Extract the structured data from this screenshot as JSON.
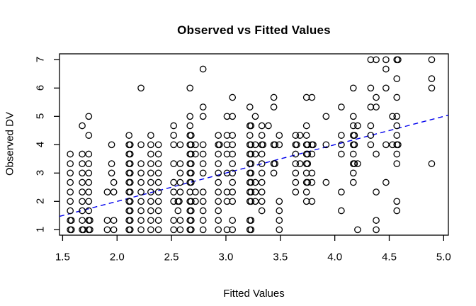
{
  "figure": {
    "title": "Observed vs Fitted Values"
  },
  "chart_data": {
    "type": "scatter",
    "title": "Observed vs Fitted Values",
    "xlabel": "Fitted Values",
    "ylabel": "Observed DV",
    "x_ticks": [
      "1.5",
      "2.0",
      "2.5",
      "3.0",
      "3.5",
      "4.0",
      "4.5",
      "5.0"
    ],
    "x_tick_values": [
      1.5,
      2.0,
      2.5,
      3.0,
      3.5,
      4.0,
      4.5,
      5.0
    ],
    "y_ticks": [
      "1",
      "2",
      "3",
      "4",
      "5",
      "6",
      "7"
    ],
    "y_tick_values": [
      1,
      2,
      3,
      4,
      5,
      6,
      7
    ],
    "xlim": [
      1.47,
      5.04
    ],
    "ylim": [
      0.79,
      7.22
    ],
    "grid": false,
    "legend": "none",
    "marker": "open-circle",
    "marker_color": "#000000",
    "background": "#ffffff",
    "reference_line": {
      "slope": 1,
      "intercept": 0,
      "style": "dashed",
      "color": "#0000EE"
    },
    "points": [
      [
        1.57,
        1,
        2
      ],
      [
        1.57,
        1.33,
        2
      ],
      [
        1.57,
        1.67
      ],
      [
        1.57,
        2
      ],
      [
        1.57,
        2.33
      ],
      [
        1.57,
        2.67
      ],
      [
        1.57,
        3
      ],
      [
        1.57,
        3.33
      ],
      [
        1.57,
        3.67
      ],
      [
        1.68,
        1,
        2
      ],
      [
        1.68,
        1.33
      ],
      [
        1.68,
        1.67
      ],
      [
        1.68,
        2
      ],
      [
        1.68,
        2.33
      ],
      [
        1.68,
        2.67
      ],
      [
        1.68,
        3
      ],
      [
        1.68,
        3.33
      ],
      [
        1.68,
        3.67
      ],
      [
        1.68,
        4.67
      ],
      [
        1.74,
        1,
        2
      ],
      [
        1.74,
        1.33,
        2
      ],
      [
        1.74,
        1.67
      ],
      [
        1.74,
        2
      ],
      [
        1.74,
        2.33
      ],
      [
        1.74,
        2.67
      ],
      [
        1.74,
        3
      ],
      [
        1.74,
        3.33
      ],
      [
        1.74,
        3.67
      ],
      [
        1.74,
        4.33
      ],
      [
        1.74,
        5
      ],
      [
        1.91,
        1
      ],
      [
        1.91,
        1.33
      ],
      [
        1.91,
        2.33
      ],
      [
        1.97,
        1
      ],
      [
        1.97,
        1.33
      ],
      [
        1.97,
        2.33
      ],
      [
        1.97,
        2.67
      ],
      [
        1.95,
        3
      ],
      [
        1.95,
        3.33
      ],
      [
        1.95,
        4
      ],
      [
        2.11,
        1,
        2
      ],
      [
        2.11,
        1.33,
        2
      ],
      [
        2.11,
        1.67,
        2
      ],
      [
        2.11,
        2,
        2
      ],
      [
        2.11,
        2.33,
        2
      ],
      [
        2.11,
        2.67,
        2
      ],
      [
        2.11,
        3,
        2
      ],
      [
        2.11,
        3.33,
        2
      ],
      [
        2.11,
        3.67,
        2
      ],
      [
        2.11,
        4,
        2
      ],
      [
        2.11,
        4.33
      ],
      [
        2.22,
        1
      ],
      [
        2.22,
        1.33
      ],
      [
        2.22,
        1.67
      ],
      [
        2.22,
        2
      ],
      [
        2.22,
        2.33
      ],
      [
        2.22,
        2.67
      ],
      [
        2.22,
        3
      ],
      [
        2.22,
        3.33
      ],
      [
        2.22,
        4
      ],
      [
        2.22,
        6
      ],
      [
        2.31,
        1
      ],
      [
        2.31,
        1.33
      ],
      [
        2.31,
        1.67
      ],
      [
        2.31,
        2
      ],
      [
        2.31,
        2.33
      ],
      [
        2.31,
        2.67
      ],
      [
        2.31,
        3
      ],
      [
        2.31,
        3.33
      ],
      [
        2.31,
        3.67
      ],
      [
        2.31,
        4
      ],
      [
        2.31,
        4.33
      ],
      [
        2.38,
        1
      ],
      [
        2.38,
        1.33
      ],
      [
        2.38,
        1.67
      ],
      [
        2.38,
        2
      ],
      [
        2.38,
        2.33
      ],
      [
        2.38,
        2.67
      ],
      [
        2.38,
        3
      ],
      [
        2.38,
        3.33
      ],
      [
        2.38,
        3.67
      ],
      [
        2.38,
        4
      ],
      [
        2.52,
        1
      ],
      [
        2.52,
        1.33
      ],
      [
        2.52,
        2
      ],
      [
        2.52,
        2.33
      ],
      [
        2.52,
        2.67
      ],
      [
        2.52,
        3.33
      ],
      [
        2.52,
        4
      ],
      [
        2.52,
        4.33
      ],
      [
        2.52,
        4.67
      ],
      [
        2.58,
        1
      ],
      [
        2.58,
        1.33
      ],
      [
        2.58,
        2.33
      ],
      [
        2.58,
        2.67
      ],
      [
        2.58,
        3
      ],
      [
        2.58,
        3.33
      ],
      [
        2.58,
        4
      ],
      [
        2.56,
        1.67
      ],
      [
        2.56,
        2,
        2
      ],
      [
        2.67,
        1,
        2
      ],
      [
        2.67,
        1.33,
        2
      ],
      [
        2.67,
        1.67,
        2
      ],
      [
        2.67,
        2,
        2
      ],
      [
        2.67,
        2.33
      ],
      [
        2.67,
        2.67,
        2
      ],
      [
        2.67,
        3,
        2
      ],
      [
        2.67,
        3.33,
        2
      ],
      [
        2.67,
        3.67,
        2
      ],
      [
        2.67,
        4,
        2
      ],
      [
        2.67,
        4.33,
        2
      ],
      [
        2.67,
        4.67
      ],
      [
        2.67,
        5
      ],
      [
        2.67,
        6
      ],
      [
        2.72,
        2
      ],
      [
        2.72,
        2.33
      ],
      [
        2.72,
        3.67
      ],
      [
        2.72,
        4
      ],
      [
        2.79,
        1
      ],
      [
        2.79,
        1.33
      ],
      [
        2.79,
        1.67
      ],
      [
        2.79,
        2
      ],
      [
        2.79,
        2.33
      ],
      [
        2.79,
        3
      ],
      [
        2.79,
        3.33
      ],
      [
        2.79,
        3.67
      ],
      [
        2.79,
        4
      ],
      [
        2.79,
        5
      ],
      [
        2.79,
        5.33
      ],
      [
        2.79,
        6.67
      ],
      [
        2.93,
        1
      ],
      [
        2.93,
        1.33
      ],
      [
        2.93,
        1.67
      ],
      [
        2.93,
        2
      ],
      [
        2.93,
        2.33
      ],
      [
        2.93,
        2.67
      ],
      [
        2.93,
        3
      ],
      [
        2.93,
        3.33
      ],
      [
        2.93,
        3.67
      ],
      [
        2.93,
        4,
        2
      ],
      [
        2.93,
        4.33
      ],
      [
        3.01,
        1
      ],
      [
        3.01,
        2
      ],
      [
        3.01,
        2.33
      ],
      [
        3.01,
        3
      ],
      [
        3.01,
        3.67
      ],
      [
        3.01,
        4
      ],
      [
        3.01,
        4.33
      ],
      [
        3.01,
        5
      ],
      [
        3.06,
        1
      ],
      [
        3.06,
        1.33
      ],
      [
        3.06,
        2
      ],
      [
        3.06,
        2.33
      ],
      [
        3.06,
        2.67
      ],
      [
        3.06,
        3
      ],
      [
        3.06,
        3.33
      ],
      [
        3.06,
        3.67
      ],
      [
        3.06,
        4
      ],
      [
        3.06,
        4.33
      ],
      [
        3.06,
        5
      ],
      [
        3.06,
        5.67
      ],
      [
        3.22,
        1,
        2
      ],
      [
        3.22,
        1.33,
        2
      ],
      [
        3.22,
        2,
        2
      ],
      [
        3.22,
        2.33,
        2
      ],
      [
        3.22,
        2.67,
        2
      ],
      [
        3.22,
        3,
        2
      ],
      [
        3.22,
        3.33,
        2
      ],
      [
        3.22,
        3.67,
        2
      ],
      [
        3.22,
        4,
        2
      ],
      [
        3.22,
        4.33
      ],
      [
        3.22,
        4.67,
        2
      ],
      [
        3.22,
        5.33
      ],
      [
        3.27,
        2
      ],
      [
        3.27,
        2.33
      ],
      [
        3.27,
        2.67
      ],
      [
        3.27,
        3.67
      ],
      [
        3.27,
        4
      ],
      [
        3.27,
        5
      ],
      [
        3.33,
        1.67
      ],
      [
        3.33,
        2
      ],
      [
        3.33,
        2.33
      ],
      [
        3.33,
        2.67
      ],
      [
        3.33,
        3
      ],
      [
        3.33,
        3.33
      ],
      [
        3.33,
        3.67
      ],
      [
        3.33,
        4,
        2
      ],
      [
        3.33,
        4.33
      ],
      [
        3.33,
        4.67
      ],
      [
        3.39,
        4.67
      ],
      [
        3.44,
        3
      ],
      [
        3.44,
        3.33,
        2
      ],
      [
        3.44,
        4,
        2
      ],
      [
        3.44,
        5.33
      ],
      [
        3.44,
        5.67
      ],
      [
        3.49,
        1
      ],
      [
        3.49,
        1.33
      ],
      [
        3.49,
        1.67
      ],
      [
        3.49,
        2
      ],
      [
        3.49,
        4
      ],
      [
        3.49,
        4.33
      ],
      [
        3.64,
        2.33
      ],
      [
        3.64,
        2.67
      ],
      [
        3.64,
        3
      ],
      [
        3.64,
        3.33
      ],
      [
        3.64,
        3.67
      ],
      [
        3.64,
        4,
        2
      ],
      [
        3.64,
        4.33
      ],
      [
        3.68,
        3.33
      ],
      [
        3.68,
        4.33
      ],
      [
        3.74,
        2
      ],
      [
        3.74,
        2.33
      ],
      [
        3.74,
        2.67,
        2
      ],
      [
        3.74,
        3
      ],
      [
        3.74,
        3.33,
        2
      ],
      [
        3.74,
        3.67,
        2
      ],
      [
        3.74,
        4,
        2
      ],
      [
        3.74,
        4.33
      ],
      [
        3.74,
        4.67
      ],
      [
        3.74,
        5.67
      ],
      [
        3.79,
        2
      ],
      [
        3.79,
        2.67
      ],
      [
        3.79,
        3
      ],
      [
        3.79,
        3.67
      ],
      [
        3.79,
        4,
        2
      ],
      [
        3.79,
        5.67
      ],
      [
        3.92,
        2.67
      ],
      [
        3.92,
        4
      ],
      [
        3.92,
        5
      ],
      [
        4.06,
        1.67
      ],
      [
        4.06,
        2.33
      ],
      [
        4.06,
        3.67
      ],
      [
        4.06,
        4
      ],
      [
        4.06,
        4.33
      ],
      [
        4.06,
        5.33
      ],
      [
        4.17,
        2.67
      ],
      [
        4.17,
        3
      ],
      [
        4.17,
        3.33,
        2
      ],
      [
        4.17,
        3.67
      ],
      [
        4.17,
        4,
        2
      ],
      [
        4.17,
        4.33,
        2
      ],
      [
        4.17,
        4.67
      ],
      [
        4.17,
        5
      ],
      [
        4.17,
        6
      ],
      [
        4.21,
        1
      ],
      [
        4.21,
        3.33
      ],
      [
        4.21,
        4.67
      ],
      [
        4.33,
        4
      ],
      [
        4.33,
        4.33
      ],
      [
        4.33,
        4.67
      ],
      [
        4.33,
        5.33
      ],
      [
        4.33,
        6
      ],
      [
        4.33,
        7
      ],
      [
        4.38,
        1
      ],
      [
        4.38,
        1.33
      ],
      [
        4.38,
        2.33
      ],
      [
        4.38,
        3.67
      ],
      [
        4.38,
        5.33
      ],
      [
        4.38,
        5.67
      ],
      [
        4.38,
        7
      ],
      [
        4.47,
        2.67
      ],
      [
        4.47,
        4
      ],
      [
        4.47,
        6
      ],
      [
        4.47,
        6.67
      ],
      [
        4.47,
        7
      ],
      [
        4.53,
        4
      ],
      [
        4.53,
        5
      ],
      [
        4.57,
        1.67
      ],
      [
        4.57,
        2
      ],
      [
        4.57,
        3.33
      ],
      [
        4.57,
        3.67
      ],
      [
        4.57,
        4,
        2
      ],
      [
        4.57,
        4.33
      ],
      [
        4.57,
        4.67
      ],
      [
        4.57,
        5
      ],
      [
        4.57,
        5.67
      ],
      [
        4.57,
        6.33
      ],
      [
        4.57,
        7,
        2
      ],
      [
        4.89,
        3.33
      ],
      [
        4.89,
        6
      ],
      [
        4.89,
        6.33
      ],
      [
        4.89,
        7
      ]
    ]
  }
}
